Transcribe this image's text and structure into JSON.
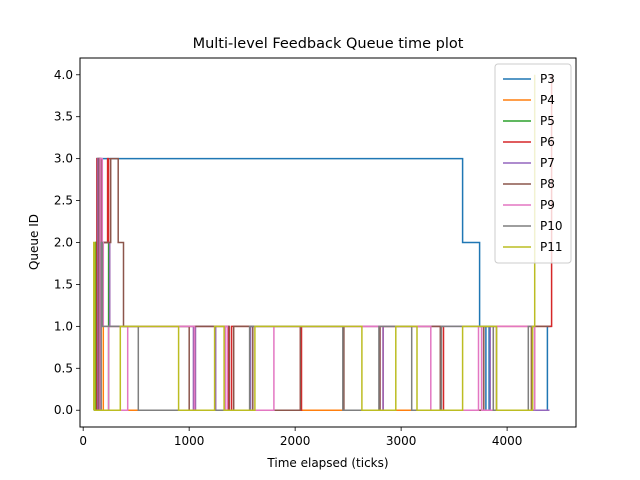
{
  "chart_data": {
    "type": "line",
    "step": true,
    "title": "Multi-level Feedback Queue time plot",
    "xlabel": "Time elapsed (ticks)",
    "ylabel": "Queue ID",
    "xlim": [
      -30,
      4650
    ],
    "ylim": [
      -0.2,
      4.2
    ],
    "xticks": [
      0,
      1000,
      2000,
      3000,
      4000
    ],
    "yticks": [
      0.0,
      0.5,
      1.0,
      1.5,
      2.0,
      2.5,
      3.0,
      3.5,
      4.0
    ],
    "xtick_labels": [
      "0",
      "1000",
      "2000",
      "3000",
      "4000"
    ],
    "ytick_labels": [
      "0.0",
      "0.5",
      "1.0",
      "1.5",
      "2.0",
      "2.5",
      "3.0",
      "3.5",
      "4.0"
    ],
    "grid": false,
    "legend_position": "top-right",
    "series": [
      {
        "name": "P3",
        "color": "#1f77b4",
        "points": [
          [
            100,
            0
          ],
          [
            120,
            0
          ],
          [
            120,
            2
          ],
          [
            130,
            2
          ],
          [
            130,
            3
          ],
          [
            3580,
            3
          ],
          [
            3580,
            2
          ],
          [
            3740,
            2
          ],
          [
            3740,
            1
          ],
          [
            3760,
            1
          ],
          [
            3760,
            0
          ],
          [
            3800,
            0
          ],
          [
            3800,
            1
          ],
          [
            3830,
            1
          ],
          [
            3830,
            0
          ],
          [
            4380,
            0
          ],
          [
            4380,
            1
          ],
          [
            4420,
            1
          ]
        ]
      },
      {
        "name": "P4",
        "color": "#ff7f0e",
        "points": [
          [
            110,
            0
          ],
          [
            110,
            1
          ],
          [
            140,
            1
          ],
          [
            140,
            0
          ],
          [
            150,
            0
          ],
          [
            150,
            1
          ],
          [
            190,
            1
          ],
          [
            190,
            0
          ],
          [
            4230,
            0
          ],
          [
            4230,
            1
          ],
          [
            4260,
            1
          ],
          [
            4260,
            0
          ]
        ]
      },
      {
        "name": "P5",
        "color": "#2ca02c",
        "points": [
          [
            120,
            0
          ],
          [
            120,
            2
          ],
          [
            140,
            2
          ],
          [
            140,
            3
          ],
          [
            150,
            3
          ],
          [
            150,
            2
          ],
          [
            240,
            2
          ],
          [
            240,
            0
          ],
          [
            250,
            0
          ]
        ]
      },
      {
        "name": "P6",
        "color": "#d62728",
        "points": [
          [
            130,
            0
          ],
          [
            130,
            3
          ],
          [
            160,
            3
          ],
          [
            160,
            2
          ],
          [
            230,
            2
          ],
          [
            230,
            3
          ],
          [
            240,
            3
          ],
          [
            240,
            2
          ],
          [
            250,
            2
          ],
          [
            250,
            1
          ],
          [
            1370,
            1
          ],
          [
            1370,
            0
          ],
          [
            1400,
            0
          ],
          [
            1400,
            1
          ],
          [
            2050,
            1
          ],
          [
            2050,
            0
          ],
          [
            2060,
            0
          ],
          [
            2060,
            1
          ],
          [
            2800,
            1
          ],
          [
            2800,
            0
          ],
          [
            2830,
            0
          ],
          [
            2830,
            1
          ],
          [
            3400,
            1
          ],
          [
            3400,
            0
          ],
          [
            3760,
            0
          ],
          [
            3760,
            1
          ],
          [
            4420,
            1
          ],
          [
            4420,
            4.0
          ]
        ]
      },
      {
        "name": "P7",
        "color": "#9467bd",
        "points": [
          [
            140,
            0
          ],
          [
            140,
            3
          ],
          [
            160,
            3
          ],
          [
            160,
            2
          ],
          [
            250,
            2
          ],
          [
            250,
            1
          ],
          [
            1040,
            1
          ],
          [
            1040,
            0
          ],
          [
            1060,
            0
          ],
          [
            1060,
            1
          ],
          [
            1250,
            1
          ],
          [
            1250,
            0
          ],
          [
            1580,
            0
          ],
          [
            1580,
            1
          ],
          [
            2800,
            1
          ],
          [
            2800,
            0
          ],
          [
            2830,
            0
          ],
          [
            2830,
            1
          ],
          [
            3840,
            1
          ],
          [
            3840,
            0
          ],
          [
            4400,
            0
          ]
        ]
      },
      {
        "name": "P8",
        "color": "#8c564b",
        "points": [
          [
            150,
            0
          ],
          [
            150,
            3
          ],
          [
            170,
            3
          ],
          [
            170,
            2
          ],
          [
            260,
            2
          ],
          [
            260,
            3
          ],
          [
            330,
            3
          ],
          [
            330,
            2
          ],
          [
            380,
            2
          ],
          [
            380,
            1
          ],
          [
            1000,
            1
          ],
          [
            1000,
            0
          ],
          [
            1050,
            0
          ],
          [
            1050,
            1
          ],
          [
            1380,
            1
          ],
          [
            1380,
            0
          ],
          [
            1420,
            0
          ],
          [
            1420,
            1
          ],
          [
            1600,
            1
          ],
          [
            1600,
            0
          ],
          [
            2050,
            0
          ],
          [
            2050,
            1
          ],
          [
            2460,
            1
          ],
          [
            2460,
            0
          ],
          [
            2800,
            0
          ],
          [
            2800,
            1
          ],
          [
            3370,
            1
          ],
          [
            3370,
            0
          ],
          [
            3780,
            0
          ],
          [
            3780,
            1
          ],
          [
            3900,
            1
          ],
          [
            3900,
            0
          ],
          [
            4230,
            0
          ],
          [
            4230,
            1
          ],
          [
            4400,
            1
          ]
        ]
      },
      {
        "name": "P9",
        "color": "#e377c2",
        "points": [
          [
            160,
            0
          ],
          [
            160,
            3
          ],
          [
            180,
            3
          ],
          [
            180,
            2
          ],
          [
            190,
            2
          ],
          [
            190,
            1
          ],
          [
            240,
            1
          ],
          [
            240,
            0
          ],
          [
            420,
            0
          ],
          [
            420,
            1
          ],
          [
            1050,
            1
          ],
          [
            1050,
            0
          ],
          [
            1340,
            0
          ],
          [
            1340,
            1
          ],
          [
            1360,
            1
          ],
          [
            1360,
            0
          ],
          [
            1800,
            0
          ],
          [
            1800,
            1
          ],
          [
            3280,
            1
          ],
          [
            3280,
            0
          ],
          [
            3730,
            0
          ],
          [
            3730,
            1
          ],
          [
            3760,
            1
          ],
          [
            3760,
            0
          ],
          [
            3870,
            0
          ],
          [
            3870,
            1
          ],
          [
            4260,
            1
          ],
          [
            4260,
            0
          ]
        ]
      },
      {
        "name": "P10",
        "color": "#7f7f7f",
        "points": [
          [
            170,
            0
          ],
          [
            170,
            2
          ],
          [
            180,
            2
          ],
          [
            180,
            1
          ],
          [
            520,
            1
          ],
          [
            520,
            0
          ],
          [
            1570,
            0
          ],
          [
            1570,
            1
          ],
          [
            2450,
            1
          ],
          [
            2450,
            0
          ],
          [
            2790,
            0
          ],
          [
            2790,
            1
          ],
          [
            3100,
            1
          ],
          [
            3100,
            0
          ],
          [
            3380,
            0
          ],
          [
            3380,
            1
          ],
          [
            3870,
            1
          ],
          [
            3870,
            0
          ],
          [
            4200,
            0
          ],
          [
            4200,
            1
          ],
          [
            4240,
            1
          ],
          [
            4240,
            0
          ]
        ]
      },
      {
        "name": "P11",
        "color": "#bcbd22",
        "points": [
          [
            100,
            0
          ],
          [
            100,
            2
          ],
          [
            110,
            2
          ],
          [
            110,
            0
          ],
          [
            350,
            0
          ],
          [
            350,
            1
          ],
          [
            900,
            1
          ],
          [
            900,
            0
          ],
          [
            1240,
            0
          ],
          [
            1240,
            1
          ],
          [
            1330,
            1
          ],
          [
            1330,
            0
          ],
          [
            1620,
            0
          ],
          [
            1620,
            1
          ],
          [
            2630,
            1
          ],
          [
            2630,
            0
          ],
          [
            2950,
            0
          ],
          [
            2950,
            1
          ],
          [
            3150,
            1
          ],
          [
            3150,
            0
          ],
          [
            3580,
            0
          ],
          [
            3580,
            1
          ],
          [
            3900,
            1
          ],
          [
            3900,
            0
          ],
          [
            4240,
            0
          ],
          [
            4240,
            1
          ],
          [
            4260,
            1
          ],
          [
            4260,
            4.0
          ]
        ]
      }
    ]
  }
}
